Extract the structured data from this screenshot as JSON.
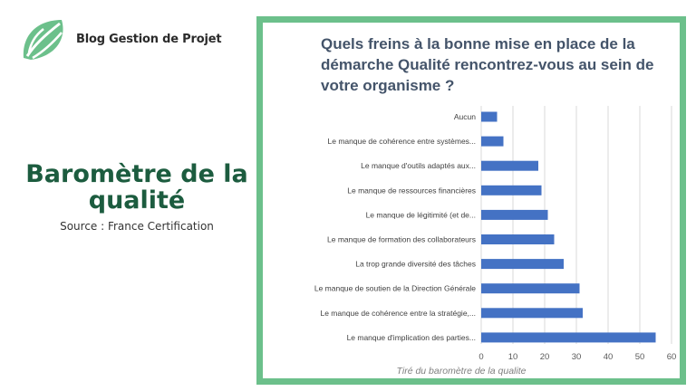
{
  "brand": {
    "name": "Blog Gestion de Projet",
    "logo_icon": "leaf-logo-icon",
    "logo_color": "#6cc08b"
  },
  "headline": {
    "title": "Baromètre de la qualité",
    "source": "Source : France Certification"
  },
  "panel": {
    "border_color": "#6cc08b"
  },
  "chart_data": {
    "type": "bar",
    "orientation": "horizontal",
    "title": "Quels freins à la bonne mise en place de la démarche Qualité rencontrez-vous au sein de votre organisme ?",
    "caption": "Tiré du baromètre de la qualite",
    "categories": [
      "Aucun",
      "Le manque de cohérence entre systèmes...",
      "Le manque d'outils adaptés aux...",
      "Le manque de ressources financières",
      "Le manque de légitimité (et de...",
      "Le manque de formation des collaborateurs",
      "La trop grande diversité des tâches",
      "Le manque de soutien de la Direction Générale",
      "Le manque de cohérence entre la stratégie,...",
      "Le manque d'implication des parties..."
    ],
    "values": [
      5,
      7,
      18,
      19,
      21,
      23,
      26,
      31,
      32,
      55
    ],
    "xlim": [
      0,
      60
    ],
    "xticks": [
      "0",
      "10",
      "20",
      "30",
      "40",
      "50",
      "60"
    ],
    "grid": true,
    "bar_color": "#4472c4",
    "grid_color": "#d9d9d9",
    "title_color": "#44546a"
  }
}
